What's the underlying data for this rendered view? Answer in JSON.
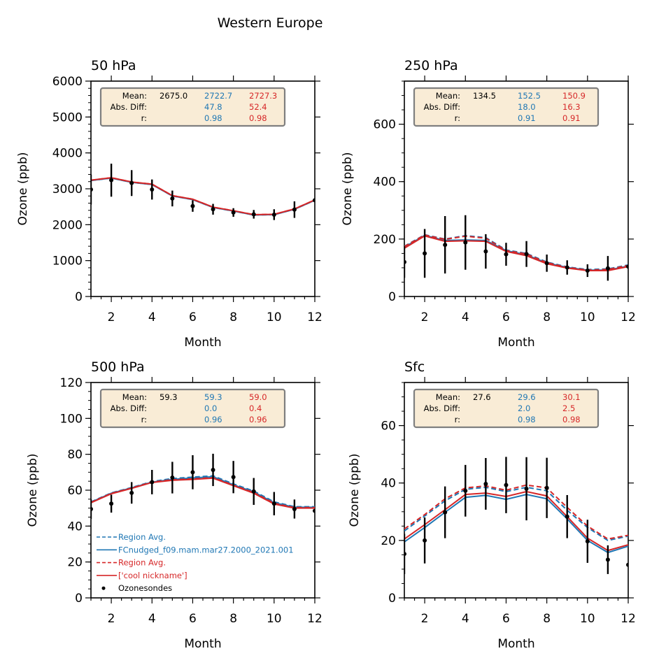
{
  "figure": {
    "suptitle": "Western Europe"
  },
  "colors": {
    "obs": "#000000",
    "model1": "#1f77b4",
    "model2": "#d62728",
    "stats_box_bg": "#f9ecd6",
    "stats_box_border": "#7f7f7f"
  },
  "stats_labels": {
    "mean": "Mean:",
    "abs_diff": "Abs. Diff:",
    "r": "r:"
  },
  "legend": {
    "panel": "500 hPa",
    "entries": [
      {
        "label": "Region Avg.",
        "style": "dashed",
        "color": "#1f77b4"
      },
      {
        "label": "FCnudged_f09.mam.mar27.2000_2021.001",
        "style": "solid",
        "color": "#1f77b4"
      },
      {
        "label": "Region Avg.",
        "style": "dashed",
        "color": "#d62728"
      },
      {
        "label": "['cool nickname']",
        "style": "solid",
        "color": "#d62728"
      },
      {
        "label": "Ozonesondes",
        "style": "marker",
        "color": "#000000"
      }
    ]
  },
  "chart_data": [
    {
      "type": "line",
      "title": "50 hPa",
      "xlabel": "Month",
      "ylabel": "Ozone (ppb)",
      "xlim": [
        1,
        12
      ],
      "ylim": [
        0,
        6000
      ],
      "xticks": [
        "2",
        "4",
        "6",
        "8",
        "10",
        "12"
      ],
      "yticks": [
        "0",
        "1000",
        "2000",
        "3000",
        "4000",
        "5000",
        "6000"
      ],
      "ytick_values": [
        0,
        1000,
        2000,
        3000,
        4000,
        5000,
        6000
      ],
      "minor_y_step": 200,
      "x": [
        1,
        2,
        3,
        4,
        5,
        6,
        7,
        8,
        9,
        10,
        11,
        12
      ],
      "series": [
        {
          "name": "Region Avg. (model 1)",
          "style": "dashed",
          "color": "#1f77b4",
          "values": [
            3230,
            3300,
            3180,
            3120,
            2800,
            2700,
            2480,
            2380,
            2270,
            2280,
            2430,
            2680
          ]
        },
        {
          "name": "FCnudged_f09.mam.mar27.2000_2021.001",
          "style": "solid",
          "color": "#1f77b4",
          "values": [
            3230,
            3300,
            3180,
            3120,
            2800,
            2700,
            2480,
            2380,
            2270,
            2280,
            2430,
            2680
          ]
        },
        {
          "name": "Region Avg. (model 2)",
          "style": "dashed",
          "color": "#d62728",
          "values": [
            3240,
            3310,
            3190,
            3130,
            2810,
            2710,
            2490,
            2390,
            2280,
            2290,
            2440,
            2690
          ]
        },
        {
          "name": "['cool nickname']",
          "style": "solid",
          "color": "#d62728",
          "values": [
            3240,
            3310,
            3190,
            3130,
            2810,
            2710,
            2490,
            2390,
            2280,
            2290,
            2440,
            2690
          ]
        }
      ],
      "observations": {
        "name": "Ozonesondes",
        "values": [
          2980,
          3240,
          3160,
          2980,
          2730,
          2520,
          2430,
          2340,
          2290,
          2280,
          2420,
          2680
        ],
        "errors": [
          420,
          460,
          360,
          280,
          220,
          160,
          150,
          120,
          120,
          150,
          230,
          0
        ]
      },
      "stats": {
        "mean": [
          "2675.0",
          "2722.7",
          "2727.3"
        ],
        "abs_diff": [
          "",
          "47.8",
          "52.4"
        ],
        "r": [
          "",
          "0.98",
          "0.98"
        ]
      }
    },
    {
      "type": "line",
      "title": "250 hPa",
      "xlabel": "Month",
      "ylabel": "Ozone (ppb)",
      "xlim": [
        1,
        12
      ],
      "ylim": [
        0,
        750
      ],
      "xticks": [
        "2",
        "4",
        "6",
        "8",
        "10",
        "12"
      ],
      "yticks": [
        "0",
        "200",
        "400",
        "600"
      ],
      "ytick_values": [
        0,
        200,
        400,
        600
      ],
      "minor_y_step": 50,
      "x": [
        1,
        2,
        3,
        4,
        5,
        6,
        7,
        8,
        9,
        10,
        11,
        12
      ],
      "series": [
        {
          "name": "Region Avg. (model 1)",
          "style": "dashed",
          "color": "#1f77b4",
          "values": [
            175,
            215,
            200,
            212,
            205,
            162,
            150,
            120,
            103,
            94,
            96,
            110
          ]
        },
        {
          "name": "FCnudged_f09.mam.mar27.2000_2021.001",
          "style": "solid",
          "color": "#1f77b4",
          "values": [
            172,
            213,
            195,
            197,
            195,
            160,
            145,
            117,
            101,
            92,
            92,
            106
          ]
        },
        {
          "name": "Region Avg. (model 2)",
          "style": "dashed",
          "color": "#d62728",
          "values": [
            174,
            214,
            199,
            210,
            203,
            160,
            148,
            118,
            101,
            92,
            94,
            108
          ]
        },
        {
          "name": "['cool nickname']",
          "style": "solid",
          "color": "#d62728",
          "values": [
            168,
            211,
            192,
            194,
            192,
            157,
            142,
            114,
            99,
            90,
            90,
            104
          ]
        }
      ],
      "observations": {
        "name": "Ozonesondes",
        "values": [
          120,
          150,
          180,
          188,
          157,
          147,
          148,
          116,
          101,
          90,
          98,
          104
        ],
        "errors": [
          55,
          85,
          100,
          95,
          60,
          40,
          45,
          30,
          25,
          22,
          43,
          0
        ]
      },
      "stats": {
        "mean": [
          "134.5",
          "152.5",
          "150.9"
        ],
        "abs_diff": [
          "",
          "18.0",
          "16.3"
        ],
        "r": [
          "",
          "0.91",
          "0.91"
        ]
      }
    },
    {
      "type": "line",
      "title": "500 hPa",
      "xlabel": "Month",
      "ylabel": "Ozone (ppb)",
      "xlim": [
        1,
        12
      ],
      "ylim": [
        0,
        120
      ],
      "xticks": [
        "2",
        "4",
        "6",
        "8",
        "10",
        "12"
      ],
      "yticks": [
        "0",
        "20",
        "40",
        "60",
        "80",
        "100",
        "120"
      ],
      "ytick_values": [
        0,
        20,
        40,
        60,
        80,
        100,
        120
      ],
      "minor_y_step": 5,
      "x": [
        1,
        2,
        3,
        4,
        5,
        6,
        7,
        8,
        9,
        10,
        11,
        12
      ],
      "series": [
        {
          "name": "Region Avg. (model 1)",
          "style": "dashed",
          "color": "#1f77b4",
          "values": [
            53.5,
            58.5,
            61.5,
            64.8,
            66.5,
            67.3,
            68.0,
            63.5,
            59.5,
            53.5,
            50.8,
            50.8
          ]
        },
        {
          "name": "FCnudged_f09.mam.mar27.2000_2021.001",
          "style": "solid",
          "color": "#1f77b4",
          "values": [
            53.3,
            58.3,
            61.3,
            64.5,
            66.0,
            66.8,
            67.5,
            63.0,
            59.0,
            53.0,
            50.5,
            50.5
          ]
        },
        {
          "name": "Region Avg. (model 2)",
          "style": "dashed",
          "color": "#d62728",
          "values": [
            53.2,
            58.2,
            61.2,
            64.5,
            65.8,
            66.3,
            67.0,
            62.8,
            58.7,
            52.7,
            50.3,
            50.3
          ]
        },
        {
          "name": "['cool nickname']",
          "style": "solid",
          "color": "#d62728",
          "values": [
            53.0,
            58.0,
            61.0,
            64.3,
            65.5,
            66.0,
            66.7,
            62.5,
            58.3,
            52.3,
            50.0,
            50.0
          ]
        }
      ],
      "observations": {
        "name": "Ozonesondes",
        "values": [
          49.5,
          52.5,
          58.5,
          64.5,
          67.0,
          70.0,
          71.3,
          67.3,
          59.3,
          52.5,
          49.5,
          48.5
        ],
        "errors": [
          5.5,
          5.0,
          6.0,
          6.8,
          8.8,
          9.5,
          9.0,
          9.0,
          7.5,
          6.5,
          5.3,
          0
        ]
      },
      "stats": {
        "mean": [
          "59.3",
          "59.3",
          "59.0"
        ],
        "abs_diff": [
          "",
          "0.0",
          "0.4"
        ],
        "r": [
          "",
          "0.96",
          "0.96"
        ]
      }
    },
    {
      "type": "line",
      "title": "Sfc",
      "xlabel": "Month",
      "ylabel": "Ozone (ppb)",
      "xlim": [
        1,
        12
      ],
      "ylim": [
        0,
        75
      ],
      "xticks": [
        "2",
        "4",
        "6",
        "8",
        "10",
        "12"
      ],
      "yticks": [
        "0",
        "20",
        "40",
        "60"
      ],
      "ytick_values": [
        0,
        20,
        40,
        60
      ],
      "minor_y_step": 5,
      "x": [
        1,
        2,
        3,
        4,
        5,
        6,
        7,
        8,
        9,
        10,
        11,
        12
      ],
      "series": [
        {
          "name": "Region Avg. (model 1)",
          "style": "dashed",
          "color": "#1f77b4",
          "values": [
            23.3,
            28.5,
            33.8,
            37.8,
            38.5,
            37.0,
            38.5,
            37.3,
            30.5,
            24.5,
            20.0,
            21.5
          ]
        },
        {
          "name": "FCnudged_f09.mam.mar27.2000_2021.001",
          "style": "solid",
          "color": "#1f77b4",
          "values": [
            19.5,
            24.5,
            29.8,
            35.0,
            35.7,
            34.3,
            36.0,
            34.5,
            27.5,
            20.0,
            15.8,
            18.0
          ]
        },
        {
          "name": "Region Avg. (model 2)",
          "style": "dashed",
          "color": "#d62728",
          "values": [
            24.0,
            29.0,
            34.5,
            38.3,
            39.0,
            37.5,
            39.3,
            38.3,
            31.5,
            25.0,
            20.5,
            21.8
          ]
        },
        {
          "name": "['cool nickname']",
          "style": "solid",
          "color": "#d62728",
          "values": [
            20.5,
            25.5,
            30.7,
            36.0,
            36.5,
            35.3,
            37.0,
            35.5,
            28.3,
            20.8,
            16.5,
            18.5
          ]
        }
      ],
      "observations": {
        "name": "Ozonesondes",
        "values": [
          15.3,
          20.0,
          29.8,
          37.3,
          39.7,
          39.3,
          38.0,
          38.3,
          28.3,
          19.7,
          13.3,
          11.5
        ],
        "errors": [
          7.0,
          8.0,
          9.0,
          9.0,
          9.0,
          9.8,
          11.0,
          10.5,
          7.5,
          7.5,
          5.0,
          0
        ]
      },
      "stats": {
        "mean": [
          "27.6",
          "29.6",
          "30.1"
        ],
        "abs_diff": [
          "",
          "2.0",
          "2.5"
        ],
        "r": [
          "",
          "0.98",
          "0.98"
        ]
      }
    }
  ]
}
